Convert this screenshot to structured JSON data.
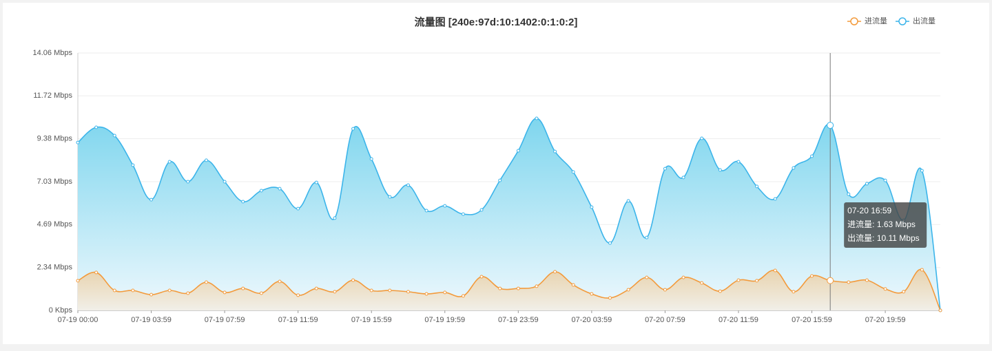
{
  "chart_data": {
    "type": "line",
    "area": true,
    "smooth": true,
    "title": "流量图 [240e:97d:10:1402:0:1:0:2]",
    "categories": [
      "07-19 00:00",
      null,
      null,
      null,
      "07-19 03:59",
      null,
      null,
      null,
      "07-19 07:59",
      null,
      null,
      null,
      "07-19 11:59",
      null,
      null,
      null,
      "07-19 15:59",
      null,
      null,
      null,
      "07-19 19:59",
      null,
      null,
      null,
      "07-19 23:59",
      null,
      null,
      null,
      "07-20 03:59",
      null,
      null,
      null,
      "07-20 07:59",
      null,
      null,
      null,
      "07-20 11:59",
      null,
      null,
      null,
      "07-20 15:59",
      null,
      null,
      null,
      "07-20 19:59",
      null,
      null,
      null
    ],
    "series": [
      {
        "name": "进流量",
        "color": "#f39a3b",
        "values": [
          1.62,
          2.07,
          1.09,
          1.09,
          0.86,
          1.09,
          0.94,
          1.54,
          0.98,
          1.2,
          0.94,
          1.58,
          0.83,
          1.2,
          1.02,
          1.65,
          1.09,
          1.09,
          1.02,
          0.9,
          0.98,
          0.79,
          1.84,
          1.2,
          1.2,
          1.32,
          2.11,
          1.39,
          0.9,
          0.68,
          1.13,
          1.8,
          1.13,
          1.8,
          1.5,
          1.05,
          1.65,
          1.62,
          2.18,
          1.02,
          1.88,
          1.63,
          1.54,
          1.65,
          1.17,
          1.02,
          2.22,
          0
        ]
      },
      {
        "name": "出流量",
        "color": "#3bb4ea",
        "values": [
          9.17,
          10.0,
          9.55,
          7.93,
          6.05,
          8.12,
          7.03,
          8.2,
          7.03,
          5.94,
          6.54,
          6.65,
          5.56,
          6.99,
          5.04,
          9.92,
          8.27,
          6.2,
          6.84,
          5.45,
          5.71,
          5.26,
          5.49,
          7.1,
          8.72,
          10.49,
          8.68,
          7.56,
          5.64,
          3.68,
          5.98,
          3.98,
          7.74,
          7.26,
          9.4,
          7.67,
          8.12,
          6.77,
          6.09,
          7.78,
          8.42,
          10.11,
          6.35,
          6.92,
          7.1,
          4.92,
          7.63,
          0
        ]
      }
    ],
    "ylim": [
      0,
      14.06
    ],
    "yticks": [
      {
        "value": 0,
        "label": "0 Kbps"
      },
      {
        "value": 2.34,
        "label": "2.34 Mbps"
      },
      {
        "value": 4.69,
        "label": "4.69 Mbps"
      },
      {
        "value": 7.03,
        "label": "7.03 Mbps"
      },
      {
        "value": 9.38,
        "label": "9.38 Mbps"
      },
      {
        "value": 11.72,
        "label": "11.72 Mbps"
      },
      {
        "value": 14.06,
        "label": "14.06 Mbps"
      }
    ],
    "grid": true,
    "legend": "top-right",
    "tooltip": {
      "title": "07-20 16:59",
      "lines": [
        "进流量: 1.63 Mbps",
        "出流量: 10.11 Mbps"
      ]
    }
  }
}
